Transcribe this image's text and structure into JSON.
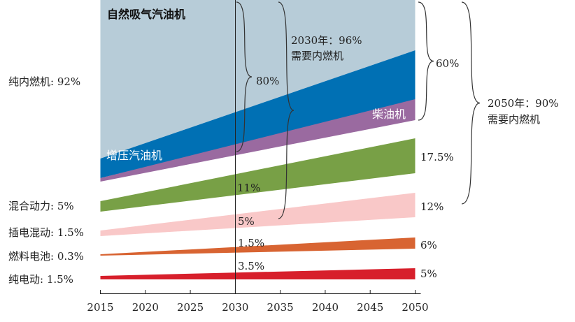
{
  "chart_data": {
    "type": "area",
    "title": "",
    "xlabel": "",
    "ylabel": "",
    "x_ticks": [
      "2015",
      "2020",
      "2025",
      "2030",
      "2035",
      "2040",
      "2045",
      "2050"
    ],
    "xlim": [
      2015,
      2050
    ],
    "series": [
      {
        "name": "纯电动",
        "start_label": "纯电动: 1.5%",
        "mid_label": "3.5%",
        "end_label": "5%",
        "start": 1.5,
        "mid": 3.5,
        "end": 5,
        "color": "#d71f2b"
      },
      {
        "name": "燃料电池",
        "start_label": "燃料电池: 0.3%",
        "mid_label": "1.5%",
        "end_label": "6%",
        "start": 0.3,
        "mid": 1.5,
        "end": 6,
        "color": "#d86432"
      },
      {
        "name": "插电混动",
        "start_label": "插电混动: 1.5%",
        "mid_label": "5%",
        "end_label": "12%",
        "start": 1.5,
        "mid": 5,
        "end": 12,
        "color": "#f9c8c8"
      },
      {
        "name": "混合动力",
        "start_label": "混合动力: 5%",
        "mid_label": "11%",
        "end_label": "17.5%",
        "start": 5,
        "mid": 11,
        "end": 17.5,
        "color": "#78a046"
      },
      {
        "name": "柴油机",
        "inner_label": "柴油机",
        "color": "#9a6aa0"
      },
      {
        "name": "增压汽油机",
        "inner_label": "增压汽油机",
        "color": "#0070b4"
      },
      {
        "name": "自然吸气汽油机",
        "inner_label": "自然吸气汽油机",
        "color": "#b7ccd8"
      }
    ],
    "annotations": {
      "pure_ice_2015": "纯内燃机: 92%",
      "ice_2030_share": "80%",
      "need_ice_2030": [
        "2030年：96%",
        "需要内燃机"
      ],
      "ice_2050_share": "60%",
      "need_ice_2050": [
        "2050年：90%",
        "需要内燃机"
      ]
    }
  }
}
